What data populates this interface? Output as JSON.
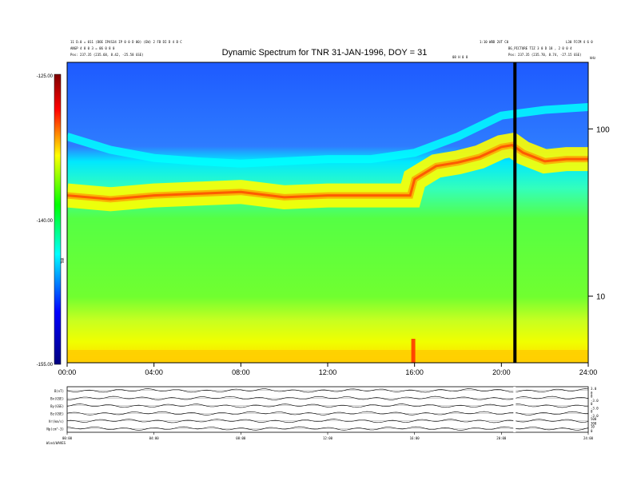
{
  "chart_data": {
    "type": "heatmap",
    "title": "Dynamic Spectrum for TNR 31-JAN-1996, DOY = 31",
    "header_left": [
      "11 D.0 = 011 (DOE IP4S34 IP 0 0 D 00) (EW) 2 FB DI D 4 B C",
      "ANGP 4 8 0 3 = 06 0 8 0",
      "Pos: 237.35 (235.68, 8.42, -25.58 GSE)"
    ],
    "header_right": [
      "1:10 WBD 2UT C0",
      "BG_PICTURE TIZ 3 0 D 18 , 2 0 0 4",
      "Pos: 237.35 (235.70, 8.74, -27.15 GSE)"
    ],
    "header_right_extra": "L30 FCCM 4 6 0",
    "marker_label": "08 H 0 8",
    "corner_label": "kHz",
    "colorbar": {
      "label": "TNR",
      "ticks": [
        "-125.00",
        "-140.00",
        "-155.00"
      ],
      "min": -155,
      "max": -125,
      "colors": [
        "#00007f",
        "#0000ff",
        "#00ffff",
        "#00ff00",
        "#ffff00",
        "#ff0000",
        "#7f0000"
      ]
    },
    "x_axis": {
      "range": [
        0,
        24
      ],
      "ticks": [
        "00:00",
        "04:00",
        "08:00",
        "12:00",
        "16:00",
        "20:00",
        "24:00"
      ]
    },
    "y_axis_right": {
      "scale": "log",
      "unit": "kHz",
      "range": [
        4,
        250
      ],
      "ticks": [
        "100",
        "10"
      ]
    },
    "data_gap": {
      "start": 20.55,
      "end": 20.65
    },
    "features": [
      {
        "name": "emission band",
        "points": [
          [
            0,
            40
          ],
          [
            2,
            38
          ],
          [
            4,
            40
          ],
          [
            6,
            41
          ],
          [
            8,
            42
          ],
          [
            10,
            39
          ],
          [
            12,
            40
          ],
          [
            14,
            40
          ],
          [
            15.8,
            40
          ],
          [
            16,
            50
          ],
          [
            17,
            60
          ],
          [
            18,
            63
          ],
          [
            19,
            68
          ],
          [
            20,
            78
          ],
          [
            20.5,
            80
          ],
          [
            21,
            72
          ],
          [
            22,
            64
          ],
          [
            23,
            66
          ],
          [
            24,
            66
          ]
        ]
      },
      {
        "name": "upper edge",
        "points": [
          [
            0,
            90
          ],
          [
            2,
            75
          ],
          [
            4,
            67
          ],
          [
            6,
            64
          ],
          [
            8,
            62
          ],
          [
            10,
            64
          ],
          [
            12,
            66
          ],
          [
            14,
            66
          ],
          [
            16,
            72
          ],
          [
            18,
            90
          ],
          [
            20,
            120
          ],
          [
            22,
            130
          ],
          [
            24,
            135
          ]
        ]
      }
    ],
    "panels": {
      "rows": [
        {
          "label": "B(nT)",
          "ticks": [
            "3.0",
            "0"
          ]
        },
        {
          "label": "Bx(GSE)",
          "ticks": [
            "0",
            "-3.0"
          ]
        },
        {
          "label": "By(GSE)",
          "ticks": [
            "0",
            "-3.0"
          ]
        },
        {
          "label": "Bz(GSE)",
          "ticks": [
            "0",
            "-3.0"
          ]
        },
        {
          "label": "Vr(km/s)",
          "ticks": [
            "500",
            "300"
          ]
        },
        {
          "label": "Np(cm^-3)",
          "ticks": [
            "10",
            "0"
          ]
        }
      ],
      "x_ticks": [
        "00:00",
        "04:00",
        "08:00",
        "12:00",
        "16:00",
        "20:00",
        "24:00"
      ],
      "footer": "Wind/WAVES"
    }
  }
}
